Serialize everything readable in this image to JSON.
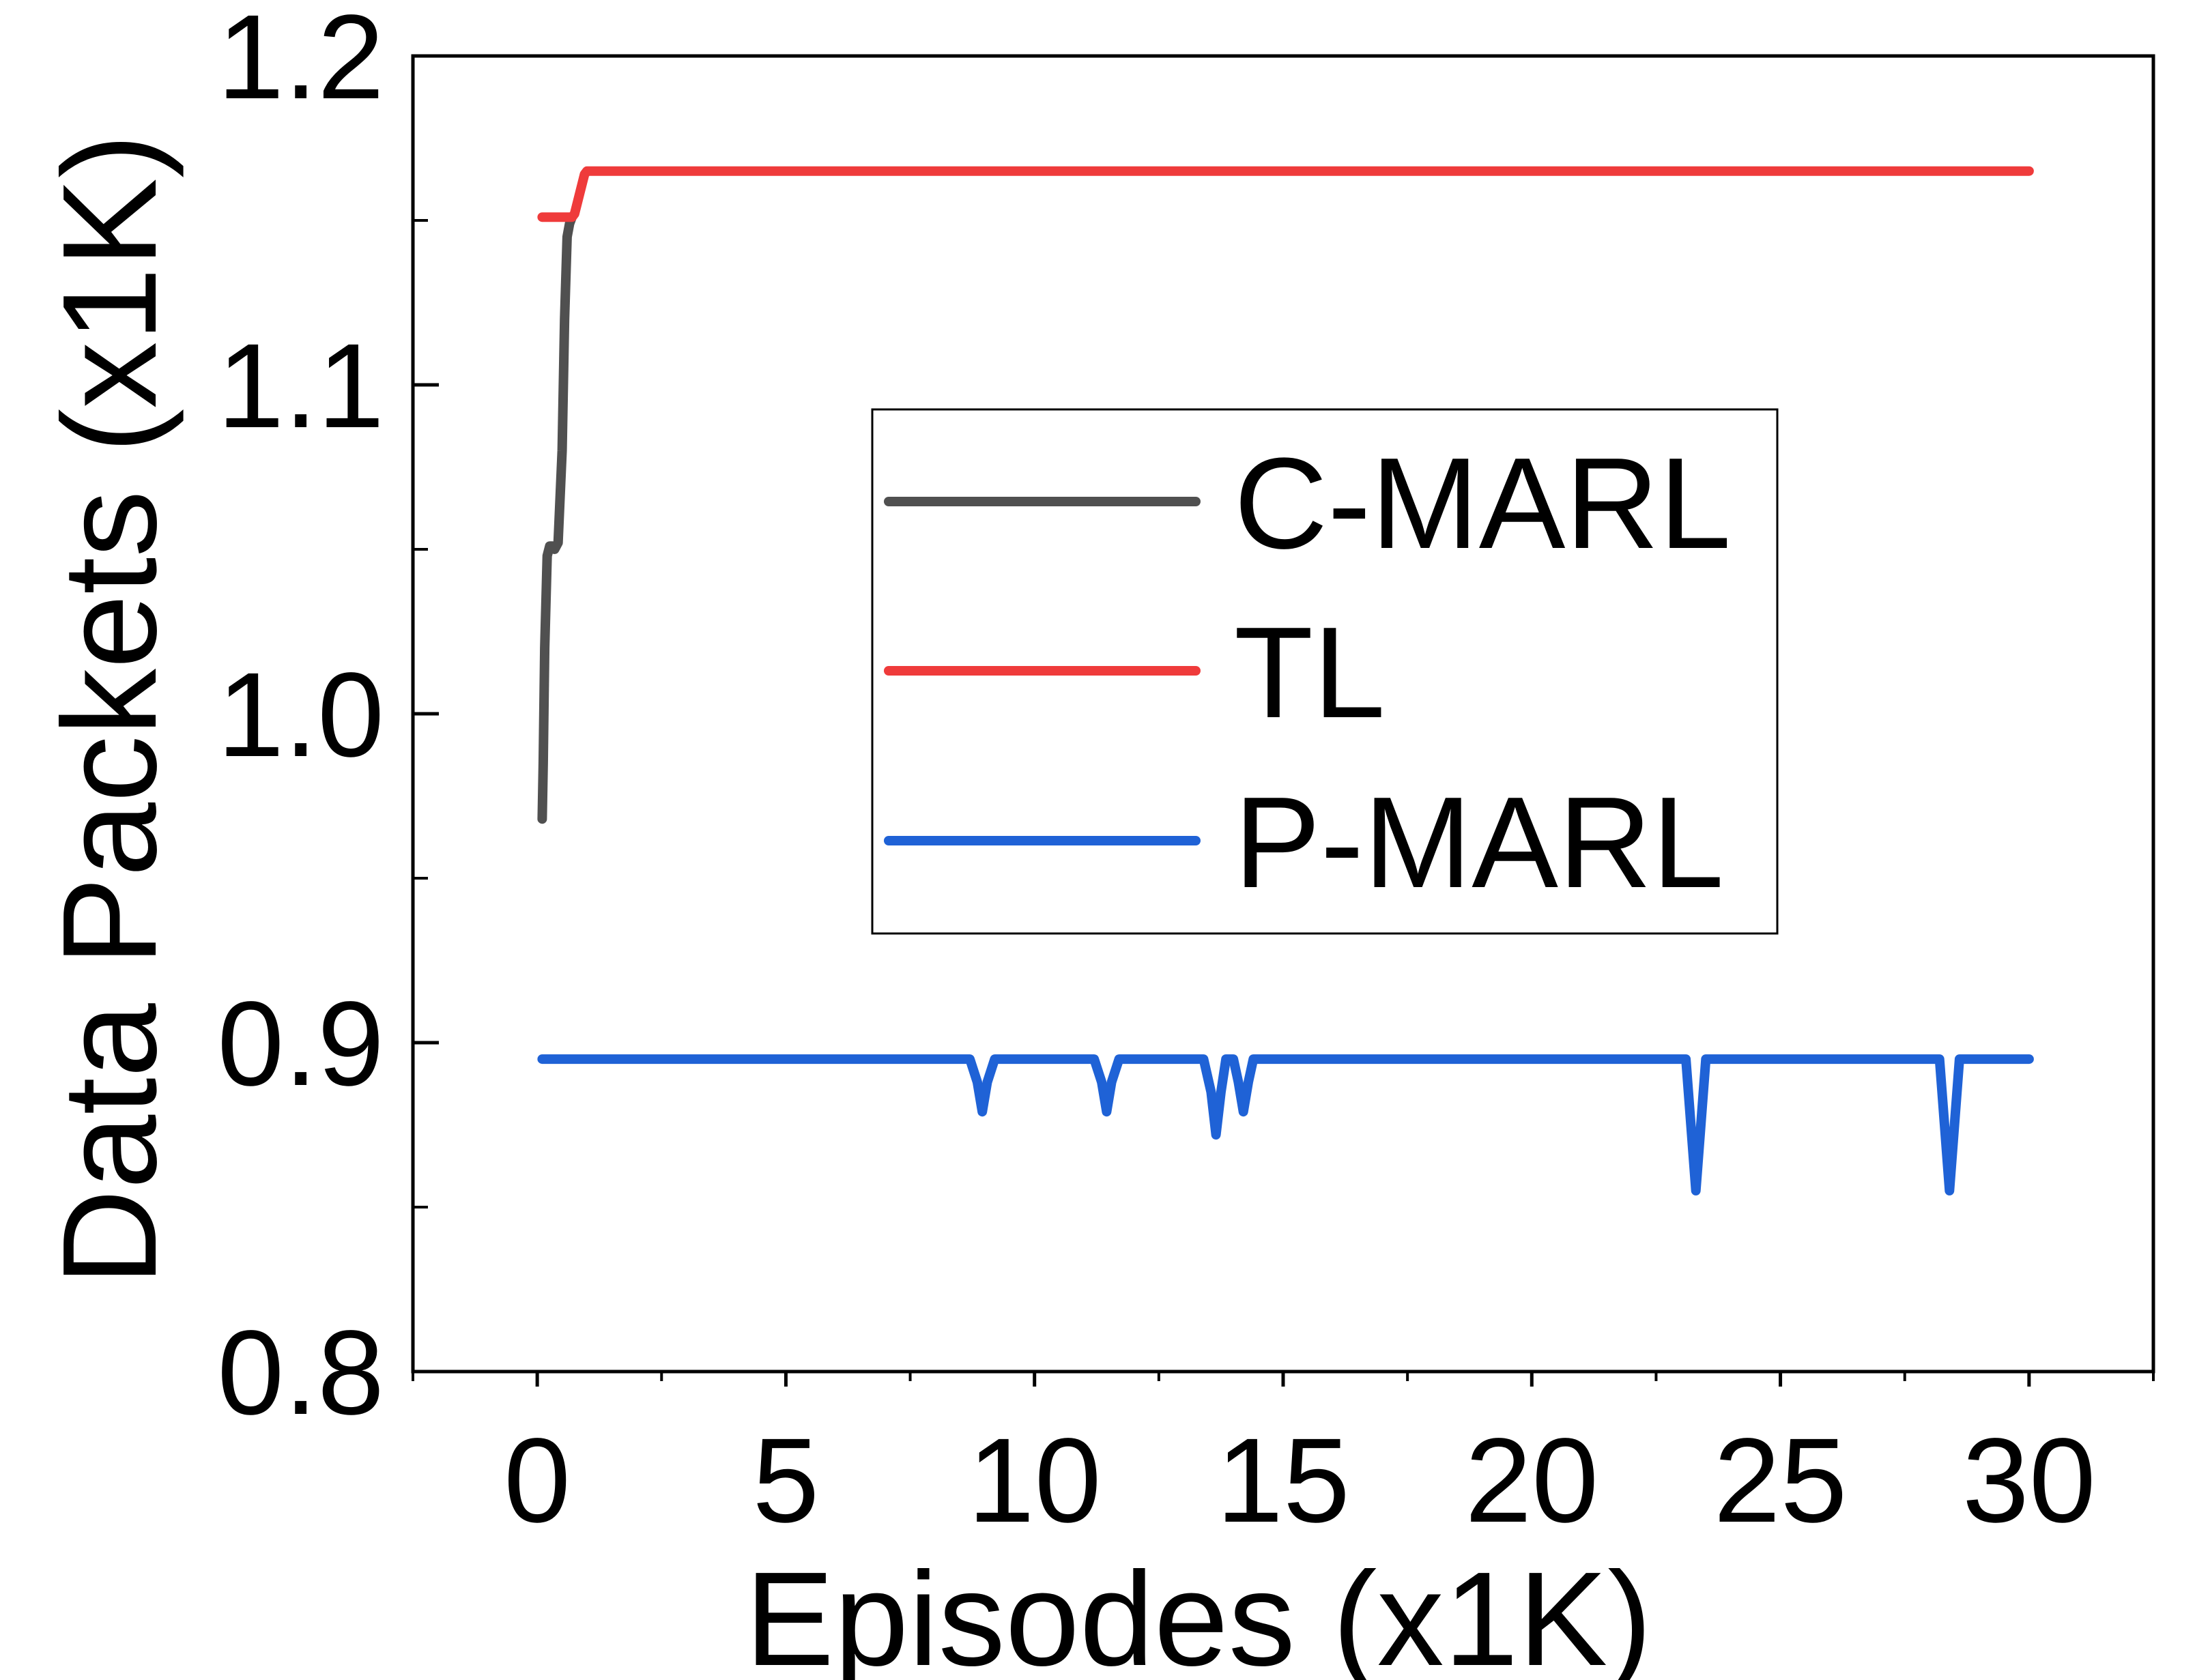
{
  "chart_data": {
    "type": "line",
    "title": "",
    "xlabel": "Episodes (x1K)",
    "ylabel": "Data Packets (x1K)",
    "xlim": [
      -2.5,
      32.5
    ],
    "ylim": [
      0.8,
      1.2
    ],
    "x_ticks": [
      0,
      5,
      10,
      15,
      20,
      25,
      30
    ],
    "x_tick_labels": [
      "0",
      "5",
      "10",
      "15",
      "20",
      "25",
      "30"
    ],
    "y_ticks": [
      0.8,
      0.9,
      1.0,
      1.1,
      1.2
    ],
    "y_tick_labels": [
      "0.8",
      "0.9",
      "1.0",
      "1.1",
      "1.2"
    ],
    "x_minor_ticks": [
      -2.5,
      2.5,
      7.5,
      12.5,
      17.5,
      22.5,
      27.5,
      32.5
    ],
    "y_minor_ticks": [
      0.85,
      0.95,
      1.05,
      1.15
    ],
    "grid": false,
    "legend_position": "center",
    "series": [
      {
        "name": "C-MARL",
        "color": "#505050",
        "x": [
          0.1,
          0.12,
          0.15,
          0.2,
          0.25,
          0.3,
          0.35,
          0.42,
          0.5,
          0.55,
          0.6,
          0.65,
          0.7
        ],
        "y": [
          0.968,
          0.985,
          1.02,
          1.048,
          1.051,
          1.051,
          1.05,
          1.052,
          1.08,
          1.12,
          1.145,
          1.149,
          1.151
        ]
      },
      {
        "name": "TL",
        "color": "#ef3b3b",
        "x": [
          0.1,
          0.3,
          0.5,
          0.7,
          0.75,
          0.85,
          0.95,
          1.0,
          1.1,
          30.0
        ],
        "y": [
          1.151,
          1.151,
          1.151,
          1.151,
          1.152,
          1.158,
          1.164,
          1.165,
          1.165,
          1.165
        ]
      },
      {
        "name": "P-MARL",
        "color": "#1f62d6",
        "x": [
          0.1,
          8.7,
          8.85,
          8.95,
          9.05,
          9.2,
          11.2,
          11.35,
          11.45,
          11.55,
          11.7,
          13.4,
          13.55,
          13.65,
          13.75,
          13.85,
          14.0,
          14.1,
          14.2,
          14.3,
          14.4,
          23.1,
          23.2,
          23.3,
          23.4,
          23.5,
          28.2,
          28.3,
          28.4,
          28.5,
          28.6,
          30.0
        ],
        "y": [
          0.895,
          0.895,
          0.888,
          0.879,
          0.888,
          0.895,
          0.895,
          0.888,
          0.879,
          0.888,
          0.895,
          0.895,
          0.885,
          0.872,
          0.885,
          0.895,
          0.895,
          0.888,
          0.879,
          0.888,
          0.895,
          0.895,
          0.875,
          0.855,
          0.875,
          0.895,
          0.895,
          0.875,
          0.855,
          0.875,
          0.895,
          0.895
        ]
      }
    ]
  }
}
